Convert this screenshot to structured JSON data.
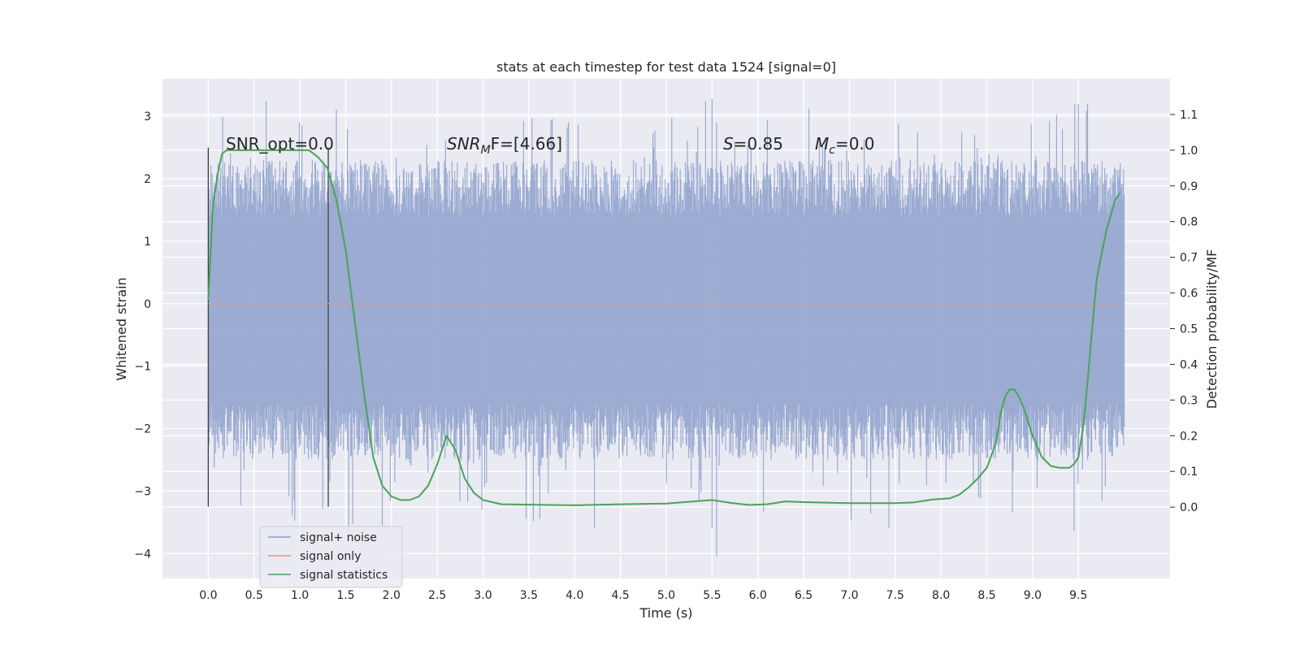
{
  "chart_data": {
    "type": "line",
    "title": "stats at each timestep for test data 1524 [signal=0]",
    "xlabel": "Time (s)",
    "ylabel": "Whitened strain",
    "y2label": "Detection probability/MF",
    "xlim": [
      -0.5,
      10.5
    ],
    "ylim": [
      -4.4,
      3.6
    ],
    "y2lim": [
      -0.2,
      1.2
    ],
    "grid": true,
    "legend_position": "lower-left",
    "x_ticks": [
      "0.0",
      "0.5",
      "1.0",
      "1.5",
      "2.0",
      "2.5",
      "3.0",
      "3.5",
      "4.0",
      "4.5",
      "5.0",
      "5.5",
      "6.0",
      "6.5",
      "7.0",
      "7.5",
      "8.0",
      "8.5",
      "9.0",
      "9.5"
    ],
    "y_ticks": [
      "3",
      "2",
      "1",
      "0",
      "−1",
      "−2",
      "−3",
      "−4"
    ],
    "y2_ticks": [
      "1.1",
      "1.0",
      "0.9",
      "0.8",
      "0.7",
      "0.6",
      "0.5",
      "0.4",
      "0.3",
      "0.2",
      "0.1",
      "0.0"
    ],
    "annotations": {
      "snr_opt": "SNR_opt=0.0",
      "snr_mf_sym": "SNR",
      "snr_mf_sub": "M",
      "snr_mf_rest": "F=[4.66]",
      "s_sym": "S",
      "s_rest": "=0.85",
      "mc_sym": "M",
      "mc_sub": "c",
      "mc_rest": "=0.0"
    },
    "series": [
      {
        "name": "signal+ noise",
        "color": "#8da0cb",
        "description_range": "noise between about -4.1 and 3.3 from 0.0 to 10.0 s",
        "x_range": [
          0.0,
          10.0
        ],
        "typical_envelope": [
          -1.6,
          1.4
        ],
        "extreme_min": -4.05,
        "extreme_max": 3.28
      },
      {
        "name": "signal only",
        "color": "#e8967a",
        "x": [
          0.0,
          10.0
        ],
        "y": [
          0.0,
          0.0
        ]
      },
      {
        "name": "signal statistics",
        "color": "#4aa35a",
        "axis": "right",
        "x": [
          0.0,
          0.05,
          0.1,
          0.15,
          0.2,
          0.3,
          0.5,
          0.7,
          0.9,
          1.1,
          1.2,
          1.3,
          1.4,
          1.5,
          1.6,
          1.7,
          1.8,
          1.9,
          2.0,
          2.1,
          2.2,
          2.3,
          2.4,
          2.5,
          2.6,
          2.7,
          2.8,
          2.9,
          3.0,
          3.2,
          3.5,
          4.0,
          4.5,
          5.0,
          5.3,
          5.5,
          5.7,
          5.9,
          6.1,
          6.3,
          6.5,
          7.0,
          7.5,
          7.7,
          7.9,
          8.1,
          8.2,
          8.3,
          8.4,
          8.5,
          8.6,
          8.65,
          8.7,
          8.75,
          8.8,
          8.85,
          8.9,
          9.0,
          9.1,
          9.2,
          9.3,
          9.4,
          9.45,
          9.5,
          9.55,
          9.6,
          9.65,
          9.7,
          9.8,
          9.9,
          9.95
        ],
        "y": [
          0.58,
          0.84,
          0.93,
          0.99,
          1.0,
          1.0,
          1.0,
          1.0,
          1.0,
          1.0,
          0.98,
          0.95,
          0.86,
          0.72,
          0.52,
          0.32,
          0.14,
          0.06,
          0.03,
          0.02,
          0.02,
          0.03,
          0.06,
          0.12,
          0.2,
          0.16,
          0.08,
          0.04,
          0.02,
          0.008,
          0.007,
          0.005,
          0.008,
          0.01,
          0.016,
          0.02,
          0.012,
          0.006,
          0.008,
          0.016,
          0.014,
          0.011,
          0.011,
          0.013,
          0.021,
          0.025,
          0.035,
          0.055,
          0.08,
          0.11,
          0.18,
          0.26,
          0.31,
          0.33,
          0.33,
          0.31,
          0.28,
          0.2,
          0.14,
          0.115,
          0.11,
          0.11,
          0.12,
          0.14,
          0.22,
          0.35,
          0.5,
          0.64,
          0.77,
          0.86,
          0.88
        ]
      }
    ]
  }
}
